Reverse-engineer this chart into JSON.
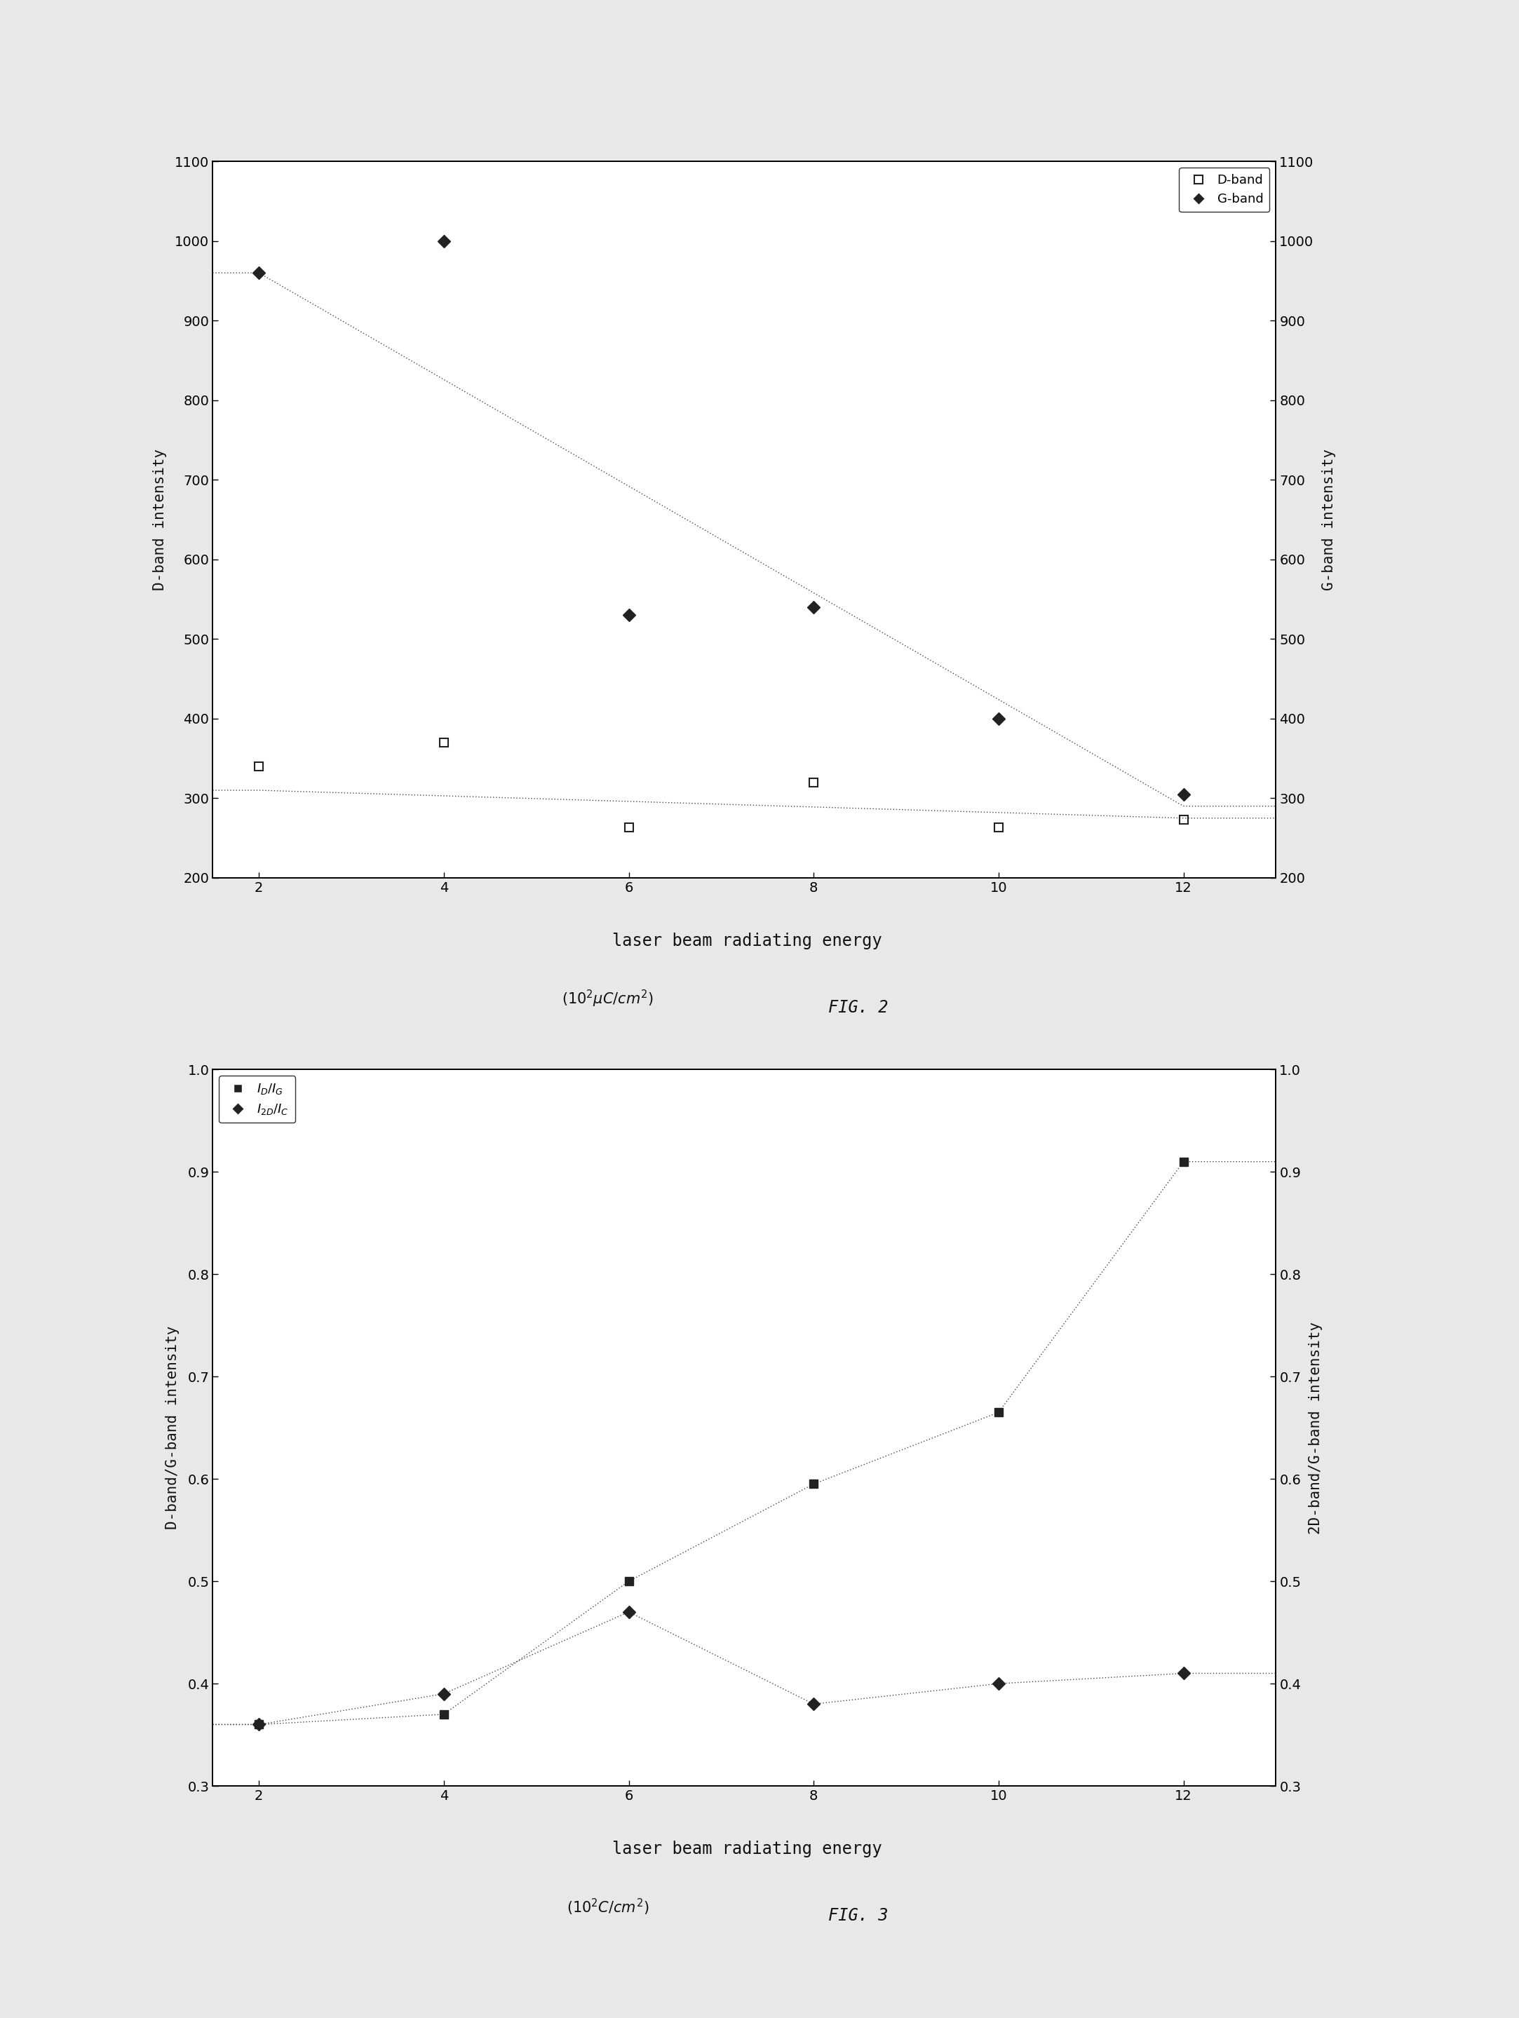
{
  "fig2": {
    "x": [
      2,
      4,
      6,
      8,
      10,
      12
    ],
    "d_band": [
      340,
      370,
      263,
      320,
      263,
      273
    ],
    "g_band": [
      960,
      1000,
      530,
      540,
      400,
      305
    ],
    "d_band_trend_y": [
      310,
      275
    ],
    "g_band_trend_y": [
      960,
      290
    ],
    "ylim": [
      200,
      1100
    ],
    "yticks": [
      200,
      300,
      400,
      500,
      600,
      700,
      800,
      900,
      1000,
      1100
    ],
    "xlim": [
      1.5,
      13
    ],
    "xticks": [
      2,
      4,
      6,
      8,
      10,
      12
    ],
    "ylabel_left": "D-band intensity",
    "ylabel_right": "G-band intensity",
    "fig_label": "FIG. 2",
    "legend_d": "D-band",
    "legend_g": "G-band",
    "xlabel_line1": "laser beam radiating energy",
    "xlabel_line2": "$(10^2\\mu C/cm^2)$"
  },
  "fig3": {
    "x": [
      2,
      4,
      6,
      8,
      10,
      12
    ],
    "id_ig": [
      0.36,
      0.37,
      0.5,
      0.595,
      0.665,
      0.91
    ],
    "i2d_ic": [
      0.36,
      0.39,
      0.47,
      0.38,
      0.4,
      0.41
    ],
    "ylim": [
      0.3,
      1.0
    ],
    "yticks": [
      0.3,
      0.4,
      0.5,
      0.6,
      0.7,
      0.8,
      0.9,
      1.0
    ],
    "xlim": [
      1.5,
      13
    ],
    "xticks": [
      2,
      4,
      6,
      8,
      10,
      12
    ],
    "ylabel_left": "D-band/G-band intensity",
    "ylabel_right": "2D-band/G-band intensity",
    "fig_label": "FIG. 3",
    "legend_id": "$I_D/I_G$",
    "legend_i2d": "$I_{2D}/I_C$",
    "xlabel_line1": "laser beam radiating energy",
    "xlabel_line2": "$(10^2 C/cm^2)$"
  },
  "bg_color": "#e8e8e8",
  "plot_bg": "#ffffff",
  "marker_color": "#222222",
  "line_color": "#444444",
  "text_color": "#111111"
}
